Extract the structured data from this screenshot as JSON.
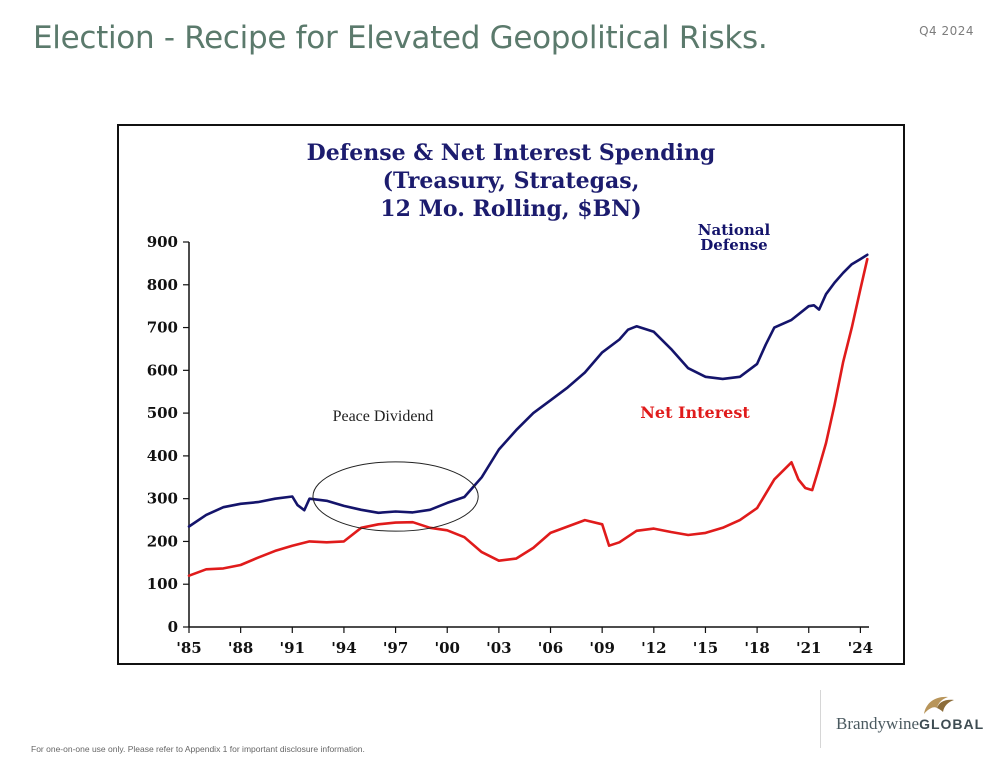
{
  "header": {
    "title": "Election - Recipe for Elevated Geopolitical Risks.",
    "quarter": "Q4 2024"
  },
  "footer": {
    "disclaimer": "For one-on-one use only. Please refer to Appendix 1 for important disclosure information.",
    "brand_light": "Brandywine",
    "brand_bold": "GLOBAL"
  },
  "colors": {
    "title_green": "#5b7a6c",
    "chart_title_navy": "#1c1c6e",
    "defense_line": "#14146b",
    "interest_line": "#e01b1b"
  },
  "chart_data": {
    "type": "line",
    "title_lines": [
      "Defense & Net Interest Spending",
      "(Treasury, Strategas,",
      "12 Mo. Rolling, $BN)"
    ],
    "xlabel": "",
    "ylabel": "",
    "xlim": [
      1985,
      2024.5
    ],
    "ylim": [
      0,
      900
    ],
    "yticks": [
      0,
      100,
      200,
      300,
      400,
      500,
      600,
      700,
      800,
      900
    ],
    "xticks": [
      {
        "year": 1985,
        "label": "'85"
      },
      {
        "year": 1988,
        "label": "'88"
      },
      {
        "year": 1991,
        "label": "'91"
      },
      {
        "year": 1994,
        "label": "'94"
      },
      {
        "year": 1997,
        "label": "'97"
      },
      {
        "year": 2000,
        "label": "'00"
      },
      {
        "year": 2003,
        "label": "'03"
      },
      {
        "year": 2006,
        "label": "'06"
      },
      {
        "year": 2009,
        "label": "'09"
      },
      {
        "year": 2012,
        "label": "'12"
      },
      {
        "year": 2015,
        "label": "'15"
      },
      {
        "year": 2018,
        "label": "'18"
      },
      {
        "year": 2021,
        "label": "'21"
      },
      {
        "year": 2024,
        "label": "'24"
      }
    ],
    "series": [
      {
        "name": "National Defense",
        "label_lines": [
          "National",
          "Defense"
        ],
        "color": "#14146b",
        "x": [
          1985,
          1986,
          1987,
          1988,
          1989,
          1990,
          1991,
          1991.3,
          1991.7,
          1992,
          1993,
          1994,
          1995,
          1996,
          1997,
          1998,
          1999,
          2000,
          2001,
          2002,
          2003,
          2004,
          2005,
          2006,
          2007,
          2008,
          2009,
          2010,
          2010.5,
          2011,
          2012,
          2013,
          2014,
          2015,
          2016,
          2017,
          2018,
          2018.5,
          2019,
          2020,
          2021,
          2021.3,
          2021.6,
          2022,
          2022.5,
          2023,
          2023.5,
          2024,
          2024.4
        ],
        "y": [
          235,
          262,
          280,
          288,
          292,
          300,
          305,
          285,
          273,
          300,
          295,
          283,
          274,
          267,
          270,
          268,
          274,
          290,
          304,
          350,
          415,
          460,
          500,
          530,
          560,
          595,
          642,
          672,
          695,
          703,
          690,
          650,
          605,
          585,
          580,
          585,
          615,
          660,
          700,
          718,
          750,
          752,
          742,
          778,
          805,
          828,
          848,
          860,
          870
        ]
      },
      {
        "name": "Net Interest",
        "label_lines": [
          "Net Interest"
        ],
        "color": "#e01b1b",
        "x": [
          1985,
          1986,
          1987,
          1988,
          1989,
          1990,
          1991,
          1992,
          1993,
          1994,
          1995,
          1996,
          1997,
          1998,
          1999,
          2000,
          2001,
          2002,
          2003,
          2004,
          2005,
          2006,
          2007,
          2008,
          2009,
          2009.4,
          2010,
          2011,
          2012,
          2013,
          2014,
          2015,
          2016,
          2017,
          2018,
          2019,
          2020,
          2020.4,
          2020.8,
          2021.2,
          2021.5,
          2022,
          2022.5,
          2023,
          2023.5,
          2024,
          2024.4
        ],
        "y": [
          120,
          135,
          137,
          145,
          162,
          178,
          190,
          200,
          198,
          200,
          232,
          240,
          244,
          245,
          232,
          226,
          210,
          175,
          155,
          160,
          185,
          220,
          235,
          250,
          240,
          190,
          198,
          225,
          230,
          222,
          215,
          220,
          232,
          250,
          278,
          345,
          385,
          345,
          325,
          320,
          360,
          430,
          520,
          620,
          700,
          790,
          860
        ]
      }
    ],
    "annotations": [
      {
        "text": "Peace Dividend",
        "type": "ellipse",
        "x": 1997,
        "y": 305,
        "rx_years": 4.8,
        "ry_value": 81
      }
    ]
  }
}
